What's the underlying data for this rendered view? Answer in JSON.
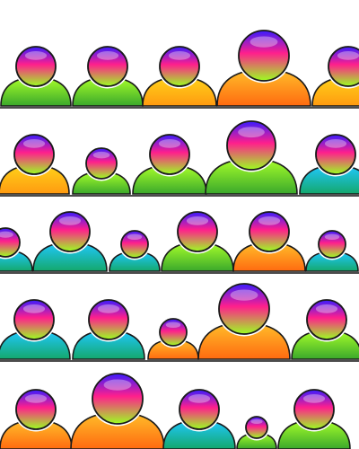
{
  "palette": {
    "head_top": "#3a1cff",
    "head_mid": "#ff1f8c",
    "head_bottom": "#9cff20",
    "yellow_body": "#ffd21a",
    "yellow_body_bottom": "#ff9a10",
    "lime_body": "#a8ff2a",
    "lime_body_bottom": "#3aa82b",
    "cyan_body": "#20c8ff",
    "cyan_body_bottom": "#14a86c",
    "orange_body": "#ffbf2a",
    "orange_body_bottom": "#ff6a10",
    "outline": "#1a1a1a",
    "divider": "#111111",
    "background": "#ffffff"
  },
  "rows": [
    {
      "figures": [
        {
          "icon": "user-icon",
          "style": "lime"
        },
        {
          "icon": "user-icon",
          "style": "lime"
        },
        {
          "icon": "user-icon",
          "style": "yellow"
        },
        {
          "icon": "user-icon",
          "style": "orange"
        },
        {
          "icon": "user-icon",
          "style": "yellow"
        }
      ]
    },
    {
      "figures": [
        {
          "icon": "user-icon",
          "style": "yellow"
        },
        {
          "icon": "user-icon",
          "style": "lime"
        },
        {
          "icon": "user-icon",
          "style": "lime"
        },
        {
          "icon": "user-icon",
          "style": "lime"
        },
        {
          "icon": "user-icon",
          "style": "cyan"
        }
      ]
    },
    {
      "figures": [
        {
          "icon": "user-icon",
          "style": "cyan"
        },
        {
          "icon": "user-icon",
          "style": "cyan"
        },
        {
          "icon": "user-icon",
          "style": "cyan"
        },
        {
          "icon": "user-icon",
          "style": "lime"
        },
        {
          "icon": "user-icon",
          "style": "orange"
        },
        {
          "icon": "user-icon",
          "style": "cyan"
        }
      ]
    },
    {
      "figures": [
        {
          "icon": "user-icon",
          "style": "cyan"
        },
        {
          "icon": "user-icon",
          "style": "cyan"
        },
        {
          "icon": "user-icon",
          "style": "orange"
        },
        {
          "icon": "user-icon",
          "style": "orange"
        },
        {
          "icon": "user-icon",
          "style": "lime"
        }
      ]
    },
    {
      "figures": [
        {
          "icon": "user-icon",
          "style": "orange"
        },
        {
          "icon": "user-icon",
          "style": "orange"
        },
        {
          "icon": "user-icon",
          "style": "cyan"
        },
        {
          "icon": "user-icon",
          "style": "lime"
        },
        {
          "icon": "user-icon",
          "style": "lime"
        }
      ]
    }
  ]
}
